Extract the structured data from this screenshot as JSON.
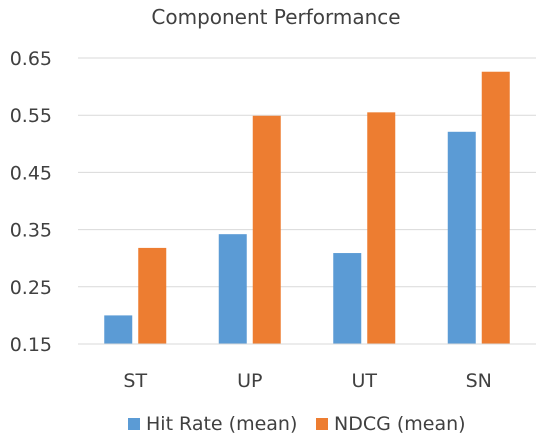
{
  "chart_data": {
    "type": "bar",
    "title": "Component Performance",
    "categories": [
      "ST",
      "UP",
      "UT",
      "SN"
    ],
    "series": [
      {
        "name": "Hit Rate (mean)",
        "color": "#5B9BD5",
        "values": [
          0.2,
          0.342,
          0.309,
          0.521
        ]
      },
      {
        "name": "NDCG (mean)",
        "color": "#ED7D31",
        "values": [
          0.318,
          0.549,
          0.555,
          0.626
        ]
      }
    ],
    "ylim": [
      0.15,
      0.65
    ],
    "yticks": [
      "0.15",
      "0.25",
      "0.35",
      "0.45",
      "0.55",
      "0.65"
    ],
    "xlabel": "",
    "ylabel": "",
    "grid": "horizontal",
    "legend": "bottom"
  }
}
